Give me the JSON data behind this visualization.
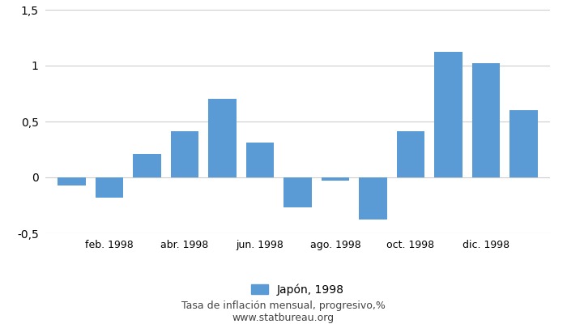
{
  "months_indices": [
    1,
    2,
    3,
    4,
    5,
    6,
    7,
    8,
    9,
    10,
    11,
    12,
    13
  ],
  "x_tick_positions": [
    2,
    4,
    6,
    8,
    10,
    12
  ],
  "x_tick_labels": [
    "feb. 1998",
    "abr. 1998",
    "jun. 1998",
    "ago. 1998",
    "oct. 1998",
    "dic. 1998"
  ],
  "values": [
    -0.07,
    -0.18,
    0.21,
    0.41,
    0.7,
    0.31,
    -0.27,
    -0.03,
    -0.38,
    0.41,
    1.12,
    1.02,
    0.6
  ],
  "bar_color": "#5B9BD5",
  "ylim": [
    -0.5,
    1.5
  ],
  "yticks": [
    -0.5,
    0,
    0.5,
    1.0,
    1.5
  ],
  "ytick_labels": [
    "-0,5",
    "0",
    "0,5",
    "1",
    "1,5"
  ],
  "legend_label": "Japón, 1998",
  "xlabel_bottom": "Tasa de inflación mensual, progresivo,%",
  "website": "www.statbureau.org",
  "background_color": "#ffffff",
  "grid_color": "#cccccc",
  "bar_width": 0.75
}
